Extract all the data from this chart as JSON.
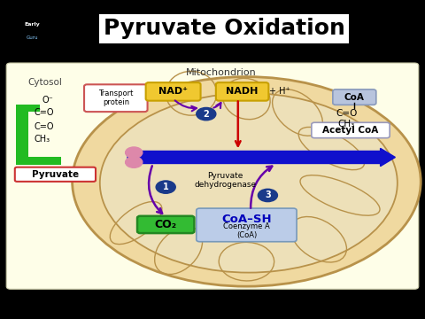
{
  "title": "Pyruvate Oxidation",
  "title_fontsize": 18,
  "title_fontweight": "bold",
  "bg_outer": "#000000",
  "bg_slide": "#ffffff",
  "bg_diagram": "#fefee8",
  "mito_fill": "#f0d9a0",
  "mito_edge": "#b8924a",
  "mito_inner_fill": "#ede0b8",
  "cytosol_label": "Cytosol",
  "mito_label": "Mitochondrion",
  "pyruvate_label": "Pyruvate",
  "transport_label": "Transport\nprotein",
  "nad_label": "NAD⁺",
  "nadh_label": "NADH",
  "nadh_plus": "+ H⁺",
  "pyruvate_dh_label": "Pyruvate\ndehydrogenase",
  "co2_label": "CO₂",
  "coa_sh_label": "CoA–SH",
  "coenzyme_label": "Coenzyme A\n(CoA)",
  "coa_box_label": "CoA",
  "acetyl_coa_label": "Acetyl CoA",
  "step1": "1",
  "step2": "2",
  "step3": "3",
  "arrow_main_color": "#1010cc",
  "arrow_red_color": "#cc0000",
  "arrow_purple_color": "#6600aa",
  "nad_bg": "#f0c830",
  "nadh_bg": "#f0c830",
  "coa_sh_color": "#0000bb",
  "co2_bg": "#33bb33",
  "co2_edge": "#228822",
  "coa_box_bg": "#aab0cc",
  "pyruvate_box_edge": "#cc3333",
  "transport_box_edge": "#cc5555",
  "pyruvate_struct_color": "#22bb22",
  "bottom_bar_color": "#5599cc",
  "logo_bg": "#1a2a55",
  "step_circle_color": "#1a3a8a",
  "pink_circle_color": "#dd88aa"
}
